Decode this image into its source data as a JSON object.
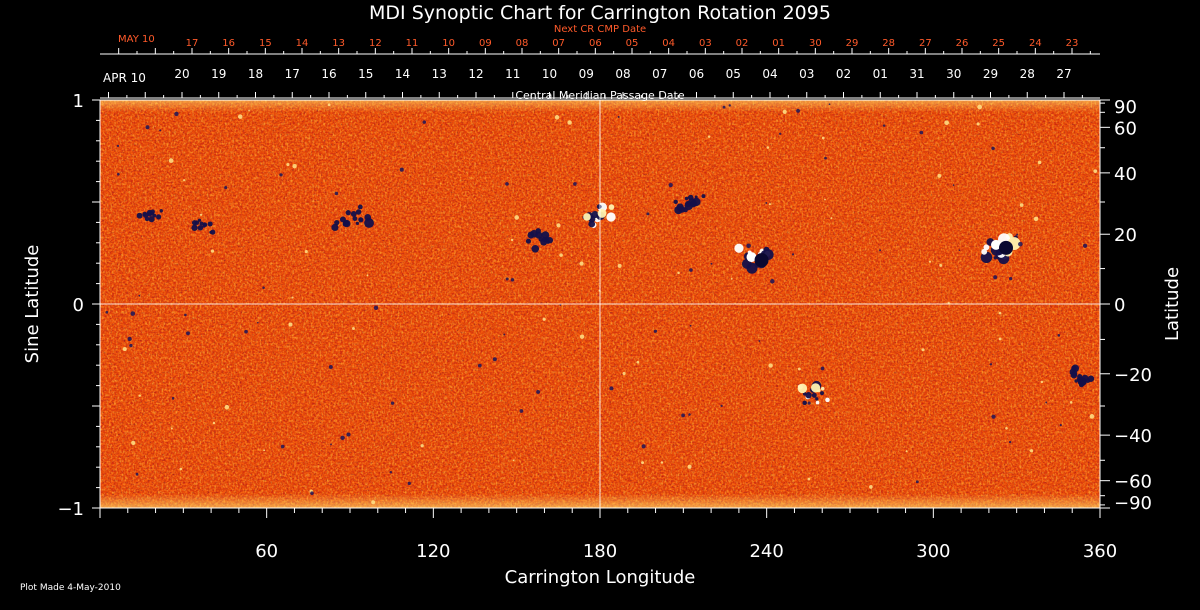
{
  "chart_data": {
    "type": "heatmap",
    "title": "MDI Synoptic Chart for Carrington Rotation 2095",
    "xlabel": "Carrington Longitude",
    "ylabel_left": "Sine Latitude",
    "ylabel_right": "Latitude",
    "xlim": [
      0,
      360
    ],
    "ylim": [
      -1,
      1
    ],
    "x_ticks": [
      60,
      120,
      180,
      240,
      300,
      360
    ],
    "y_ticks_left": [
      {
        "value": 1,
        "label": "1"
      },
      {
        "value": 0,
        "label": "0"
      },
      {
        "value": -1,
        "label": "−1"
      }
    ],
    "y_ticks_right": [
      90,
      60,
      40,
      20,
      0,
      -20,
      -40,
      -60,
      -90
    ],
    "grid": "center crosshair",
    "colormap": [
      "#ff6010",
      "#ff8a20",
      "#ffd84a",
      "#c8200c",
      "#1a1660"
    ],
    "cmp_axis_title": "Central Meridian Passage Date",
    "cmp_start_label": "APR 10",
    "cmp_date_labels": [
      "20",
      "19",
      "18",
      "17",
      "16",
      "15",
      "14",
      "13",
      "12",
      "11",
      "10",
      "09",
      "08",
      "07",
      "06",
      "05",
      "04",
      "03",
      "02",
      "01",
      "31",
      "30",
      "29",
      "28",
      "27"
    ],
    "next_axis_title": "Next CR CMP Date",
    "next_start_label": "MAY 10",
    "next_date_labels": [
      "17",
      "16",
      "15",
      "14",
      "13",
      "12",
      "11",
      "10",
      "09",
      "08",
      "07",
      "06",
      "05",
      "04",
      "03",
      "02",
      "01",
      "30",
      "29",
      "28",
      "27",
      "26",
      "25",
      "24",
      "23"
    ],
    "active_regions": [
      {
        "lon": 324,
        "sinlat": 0.28,
        "polarity": "mixed",
        "strength": 1.0
      },
      {
        "lon": 236,
        "sinlat": 0.22,
        "polarity": "mixed",
        "strength": 0.8
      },
      {
        "lon": 178,
        "sinlat": 0.43,
        "polarity": "mixed",
        "strength": 0.7
      },
      {
        "lon": 91,
        "sinlat": 0.43,
        "polarity": "negative",
        "strength": 0.7
      },
      {
        "lon": 256,
        "sinlat": -0.45,
        "polarity": "mixed",
        "strength": 0.7
      },
      {
        "lon": 353,
        "sinlat": -0.36,
        "polarity": "negative",
        "strength": 0.6
      },
      {
        "lon": 212,
        "sinlat": 0.5,
        "polarity": "negative",
        "strength": 0.6
      },
      {
        "lon": 157,
        "sinlat": 0.32,
        "polarity": "negative",
        "strength": 0.5
      },
      {
        "lon": 18,
        "sinlat": 0.44,
        "polarity": "negative",
        "strength": 0.4
      },
      {
        "lon": 37,
        "sinlat": 0.38,
        "polarity": "negative",
        "strength": 0.4
      }
    ]
  },
  "footer": {
    "plot_made": "Plot Made  4-May-2010"
  }
}
